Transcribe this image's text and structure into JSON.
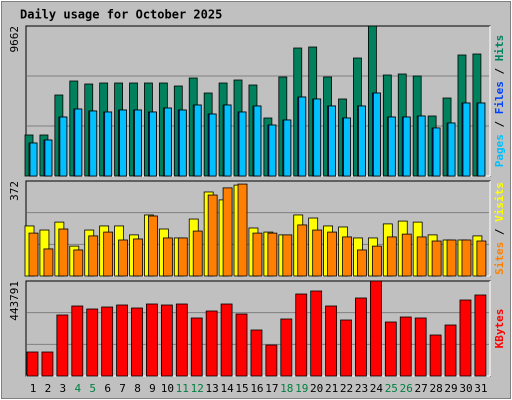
{
  "chart_data": [
    {
      "type": "bar",
      "title": "Daily usage for October 2025",
      "ylim": [
        0,
        9662
      ],
      "yticks": [
        9662
      ],
      "series": [
        {
          "name": "Hits",
          "color": "#00805c",
          "values": [
            2641,
            2641,
            5217,
            6119,
            5926,
            5990,
            5990,
            5990,
            5990,
            5990,
            5797,
            6312,
            5346,
            5990,
            6183,
            5861,
            3736,
            6377,
            8244,
            8309,
            6377,
            4960,
            7600,
            9662,
            6505,
            6570,
            6441,
            3865,
            5024,
            7794,
            7858
          ]
        },
        {
          "name": "Files",
          "color": "#0040ff",
          "values": [
            2126,
            2319,
            3800,
            4315,
            4187,
            4122,
            4251,
            4251,
            4122,
            4380,
            4251,
            4573,
            3993,
            4573,
            4122,
            4509,
            3285,
            3607,
            5088,
            4960,
            4509,
            3736,
            4509,
            5346,
            3800,
            3800,
            3865,
            3092,
            3414,
            4702,
            4702
          ]
        },
        {
          "name": "Pages",
          "color": "#00c0ff",
          "values": [
            2126,
            2319,
            3800,
            4315,
            4187,
            4122,
            4251,
            4251,
            4122,
            4380,
            4251,
            4573,
            3993,
            4573,
            4122,
            4509,
            3285,
            3607,
            5088,
            4960,
            4509,
            3736,
            4509,
            5346,
            3800,
            3800,
            3865,
            3092,
            3414,
            4702,
            4702
          ]
        }
      ]
    },
    {
      "type": "bar",
      "ylim": [
        0,
        372
      ],
      "yticks": [
        372
      ],
      "series": [
        {
          "name": "Visits",
          "color": "#ffff00",
          "values": [
            196,
            180,
            211,
            117,
            180,
            196,
            196,
            161,
            239,
            184,
            149,
            223,
            329,
            298,
            356,
            188,
            172,
            161,
            239,
            227,
            196,
            192,
            149,
            149,
            204,
            215,
            211,
            161,
            141,
            141,
            157
          ]
        },
        {
          "name": "Sites",
          "color": "#ff8000",
          "values": [
            168,
            106,
            184,
            102,
            157,
            172,
            141,
            145,
            235,
            149,
            149,
            176,
            317,
            345,
            360,
            168,
            168,
            161,
            200,
            180,
            172,
            153,
            102,
            117,
            153,
            164,
            153,
            137,
            141,
            141,
            137
          ]
        }
      ]
    },
    {
      "type": "bar",
      "ylim": [
        0,
        443791
      ],
      "yticks": [
        443791
      ],
      "categories": [
        "1",
        "2",
        "3",
        "4",
        "5",
        "6",
        "7",
        "8",
        "9",
        "10",
        "11",
        "12",
        "13",
        "14",
        "15",
        "16",
        "17",
        "18",
        "19",
        "20",
        "21",
        "22",
        "23",
        "24",
        "25",
        "26",
        "27",
        "28",
        "29",
        "30",
        "31"
      ],
      "category_color": "#000000",
      "highlight_color": "#008040",
      "highlighted_indices": [
        3,
        4,
        10,
        11,
        17,
        18,
        24,
        25
      ],
      "series": [
        {
          "name": "KBytes",
          "color": "#ff0000",
          "values": [
            112116,
            112116,
            284962,
            327005,
            312990,
            322334,
            331677,
            317662,
            336348,
            331677,
            336348,
            270947,
            303648,
            336348,
            289633,
            214889,
            144817,
            266276,
            383063,
            397078,
            327005,
            261604,
            364377,
            443791,
            252261,
            275619,
            270947,
            191532,
            238247,
            355034,
            378392
          ]
        }
      ]
    }
  ]
}
